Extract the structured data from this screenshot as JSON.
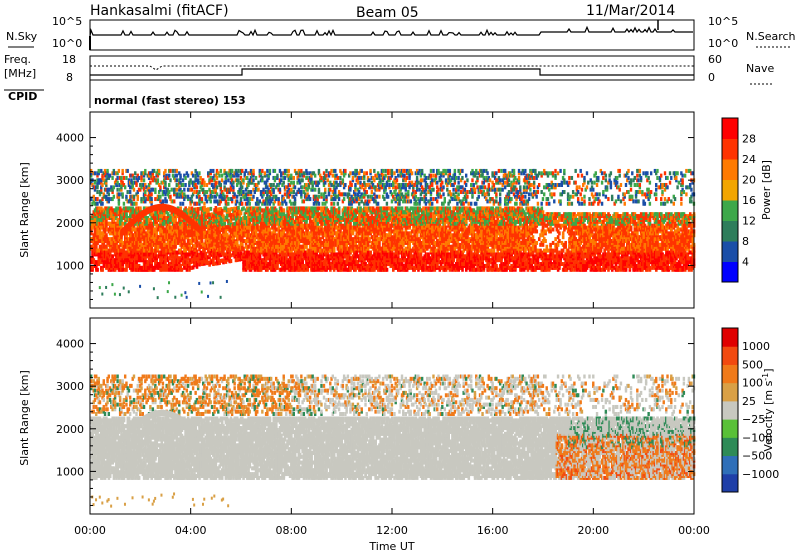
{
  "header": {
    "station": "Hankasalmi (fitACF)",
    "beam": "Beam 05",
    "date": "11/Mar/2014"
  },
  "noise_panel": {
    "left_label": "N.Sky",
    "right_label": "N.Search",
    "left_ticks": [
      "10^5",
      "10^0"
    ],
    "right_ticks": [
      "10^5",
      "10^0"
    ]
  },
  "freq_panel": {
    "left_label_line1": "Freq.",
    "left_label_line2": "[MHz]",
    "right_label": "Nave",
    "left_ticks": [
      "18",
      "8"
    ],
    "right_ticks": [
      "60",
      "0"
    ],
    "cpid_label": "CPID",
    "mode_text": "normal (fast stereo) 153"
  },
  "colors": {
    "power_scale": [
      "#0000ff",
      "#1a4ea8",
      "#2e7d5b",
      "#3da84a",
      "#f2a500",
      "#ff7a00",
      "#ff3300",
      "#ff0000"
    ],
    "velocity_scale": [
      "#1f3fa8",
      "#2f6fb8",
      "#2e8b57",
      "#59c038",
      "#c8c8c0",
      "#d9a046",
      "#f07a1a",
      "#f24a10",
      "#e00000"
    ]
  },
  "chart_data": [
    {
      "type": "heatmap",
      "panel": "power",
      "ylabel": "Slant Range [km]",
      "yticks": [
        "1000",
        "2000",
        "3000",
        "4000"
      ],
      "ylim": [
        0,
        4600
      ],
      "xlim": [
        0,
        24
      ],
      "colorbar_label": "Power [dB]",
      "colorbar_ticks": [
        "4",
        "8",
        "12",
        "16",
        "20",
        "24",
        "28"
      ]
    },
    {
      "type": "heatmap",
      "panel": "velocity",
      "xlabel": "Time UT",
      "ylabel": "Slant Range [km]",
      "yticks": [
        "1000",
        "2000",
        "3000",
        "4000"
      ],
      "ylim": [
        0,
        4600
      ],
      "xticks": [
        "00:00",
        "04:00",
        "08:00",
        "12:00",
        "16:00",
        "20:00",
        "00:00"
      ],
      "xlim": [
        0,
        24
      ],
      "colorbar_label": "Velocity [m s",
      "colorbar_label_sup": "-1",
      "colorbar_label_end": "]",
      "colorbar_ticks": [
        "1000",
        "500",
        "100",
        "25",
        "−25",
        "−100",
        "−500",
        "−1000"
      ]
    }
  ]
}
